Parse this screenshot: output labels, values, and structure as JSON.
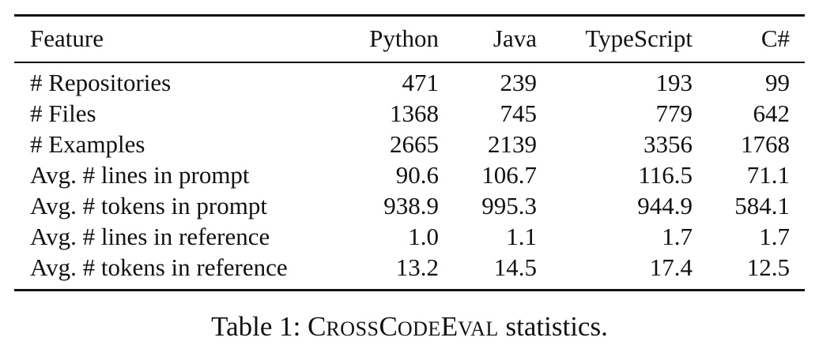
{
  "table": {
    "headers": [
      "Feature",
      "Python",
      "Java",
      "TypeScript",
      "C#"
    ],
    "rows": [
      [
        "# Repositories",
        "471",
        "239",
        "193",
        "99"
      ],
      [
        "# Files",
        "1368",
        "745",
        "779",
        "642"
      ],
      [
        "# Examples",
        "2665",
        "2139",
        "3356",
        "1768"
      ],
      [
        "Avg. # lines in prompt",
        "90.6",
        "106.7",
        "116.5",
        "71.1"
      ],
      [
        "Avg. # tokens in prompt",
        "938.9",
        "995.3",
        "944.9",
        "584.1"
      ],
      [
        "Avg. # lines in reference",
        "1.0",
        "1.1",
        "1.7",
        "1.7"
      ],
      [
        "Avg. # tokens in reference",
        "13.2",
        "14.5",
        "17.4",
        "12.5"
      ]
    ]
  },
  "caption": {
    "prefix": "Table 1: ",
    "name_parts": [
      {
        "cap": "C",
        "small": "ROSS"
      },
      {
        "cap": "C",
        "small": "ODE"
      },
      {
        "cap": "E",
        "small": "VAL"
      }
    ],
    "suffix": " statistics."
  }
}
